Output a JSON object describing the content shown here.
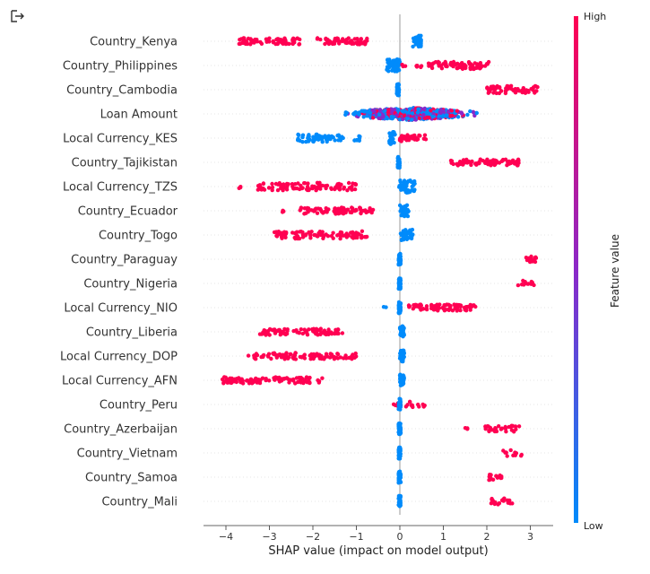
{
  "output_icon": "output-arrow-icon",
  "chart_data": {
    "type": "scatter",
    "subtype": "shap-beeswarm",
    "title": "",
    "xlabel": "SHAP value (impact on model output)",
    "ylabel": "",
    "xlim": [
      -4.5,
      3.5
    ],
    "xticks": [
      -4,
      -3,
      -2,
      -1,
      0,
      1,
      2,
      3
    ],
    "xtick_labels": [
      "−4",
      "−3",
      "−2",
      "−1",
      "0",
      "1",
      "2",
      "3"
    ],
    "grid": false,
    "colorbar": {
      "label": "Feature value",
      "high_label": "High",
      "low_label": "Low",
      "high_color": "#ff0052",
      "mid_color": "#8b28c8",
      "low_color": "#008bfb"
    },
    "features": [
      {
        "name": "Country_Kenya",
        "groups": [
          {
            "x": [
              0.3,
              0.5
            ],
            "value": "low",
            "n": 40,
            "spread": 1.0
          },
          {
            "x": [
              -3.7,
              -2.3
            ],
            "value": "high",
            "n": 70,
            "spread": 0.5
          },
          {
            "x": [
              -1.9,
              -0.75
            ],
            "value": "high",
            "n": 60,
            "spread": 0.5
          }
        ]
      },
      {
        "name": "Country_Philippines",
        "groups": [
          {
            "x": [
              -0.3,
              0.0
            ],
            "value": "low",
            "n": 50,
            "spread": 1.0
          },
          {
            "x": [
              0.05,
              0.15
            ],
            "value": "high",
            "n": 3,
            "spread": 0.2
          },
          {
            "x": [
              0.6,
              2.05
            ],
            "value": "high",
            "n": 80,
            "spread": 0.6
          },
          {
            "x": [
              0.3,
              0.5
            ],
            "value": "high",
            "n": 6,
            "spread": 0.3
          }
        ]
      },
      {
        "name": "Country_Cambodia",
        "groups": [
          {
            "x": [
              -0.07,
              -0.02
            ],
            "value": "low",
            "n": 40,
            "spread": 0.9
          },
          {
            "x": [
              2.0,
              3.2
            ],
            "value": "high",
            "n": 70,
            "spread": 0.6
          }
        ]
      },
      {
        "name": "Loan Amount",
        "groups": [
          {
            "x": [
              -1.5,
              1.95
            ],
            "value": "mixed",
            "n": 600,
            "spread": 1.0
          }
        ]
      },
      {
        "name": "Local Currency_KES",
        "groups": [
          {
            "x": [
              -2.35,
              -1.3
            ],
            "value": "low",
            "n": 60,
            "spread": 0.6
          },
          {
            "x": [
              -1.1,
              -0.9
            ],
            "value": "low",
            "n": 8,
            "spread": 0.4
          },
          {
            "x": [
              -0.25,
              -0.1
            ],
            "value": "low",
            "n": 30,
            "spread": 1.0
          },
          {
            "x": [
              0.0,
              0.6
            ],
            "value": "high",
            "n": 40,
            "spread": 0.5
          }
        ]
      },
      {
        "name": "Country_Tajikistan",
        "groups": [
          {
            "x": [
              -0.05,
              0.0
            ],
            "value": "low",
            "n": 40,
            "spread": 0.9
          },
          {
            "x": [
              1.1,
              1.25
            ],
            "value": "high",
            "n": 4,
            "spread": 0.3
          },
          {
            "x": [
              1.3,
              2.75
            ],
            "value": "high",
            "n": 80,
            "spread": 0.5
          }
        ]
      },
      {
        "name": "Local Currency_TZS",
        "groups": [
          {
            "x": [
              -3.7,
              -3.6
            ],
            "value": "high",
            "n": 3,
            "spread": 0.3
          },
          {
            "x": [
              -3.3,
              -1.0
            ],
            "value": "high",
            "n": 100,
            "spread": 0.6
          },
          {
            "x": [
              -0.02,
              0.35
            ],
            "value": "low",
            "n": 40,
            "spread": 1.0
          }
        ]
      },
      {
        "name": "Country_Ecuador",
        "groups": [
          {
            "x": [
              -2.75,
              -2.65
            ],
            "value": "high",
            "n": 3,
            "spread": 0.3
          },
          {
            "x": [
              -2.3,
              -0.55
            ],
            "value": "high",
            "n": 80,
            "spread": 0.5
          },
          {
            "x": [
              0.0,
              0.2
            ],
            "value": "low",
            "n": 40,
            "spread": 0.9
          }
        ]
      },
      {
        "name": "Country_Togo",
        "groups": [
          {
            "x": [
              -2.9,
              -0.75
            ],
            "value": "high",
            "n": 90,
            "spread": 0.6
          },
          {
            "x": [
              0.0,
              0.3
            ],
            "value": "low",
            "n": 40,
            "spread": 0.9
          }
        ]
      },
      {
        "name": "Country_Paraguay",
        "groups": [
          {
            "x": [
              -0.03,
              0.02
            ],
            "value": "low",
            "n": 40,
            "spread": 0.9
          },
          {
            "x": [
              2.8,
              3.15
            ],
            "value": "high",
            "n": 15,
            "spread": 0.5
          }
        ]
      },
      {
        "name": "Country_Nigeria",
        "groups": [
          {
            "x": [
              -0.03,
              0.02
            ],
            "value": "low",
            "n": 40,
            "spread": 0.9
          },
          {
            "x": [
              2.65,
              3.1
            ],
            "value": "high",
            "n": 12,
            "spread": 0.5
          }
        ]
      },
      {
        "name": "Local Currency_NIO",
        "groups": [
          {
            "x": [
              -0.38,
              -0.32
            ],
            "value": "low",
            "n": 2,
            "spread": 0.2
          },
          {
            "x": [
              -0.03,
              0.02
            ],
            "value": "low",
            "n": 40,
            "spread": 0.9
          },
          {
            "x": [
              0.2,
              1.8
            ],
            "value": "high",
            "n": 80,
            "spread": 0.5
          }
        ]
      },
      {
        "name": "Country_Liberia",
        "groups": [
          {
            "x": [
              -3.25,
              -1.3
            ],
            "value": "high",
            "n": 90,
            "spread": 0.5
          },
          {
            "x": [
              0.0,
              0.1
            ],
            "value": "low",
            "n": 40,
            "spread": 0.9
          }
        ]
      },
      {
        "name": "Local Currency_DOP",
        "groups": [
          {
            "x": [
              -3.5,
              -1.0
            ],
            "value": "high",
            "n": 100,
            "spread": 0.5
          },
          {
            "x": [
              0.0,
              0.1
            ],
            "value": "low",
            "n": 40,
            "spread": 0.9
          }
        ]
      },
      {
        "name": "Local Currency_AFN",
        "groups": [
          {
            "x": [
              -4.1,
              -1.75
            ],
            "value": "high",
            "n": 100,
            "spread": 0.5
          },
          {
            "x": [
              0.0,
              0.1
            ],
            "value": "low",
            "n": 40,
            "spread": 0.9
          }
        ]
      },
      {
        "name": "Country_Peru",
        "groups": [
          {
            "x": [
              -0.15,
              0.6
            ],
            "value": "high",
            "n": 20,
            "spread": 0.5
          },
          {
            "x": [
              -0.03,
              0.02
            ],
            "value": "low",
            "n": 40,
            "spread": 0.9
          }
        ]
      },
      {
        "name": "Country_Azerbaijan",
        "groups": [
          {
            "x": [
              -0.03,
              0.02
            ],
            "value": "low",
            "n": 40,
            "spread": 0.9
          },
          {
            "x": [
              1.5,
              1.6
            ],
            "value": "high",
            "n": 3,
            "spread": 0.3
          },
          {
            "x": [
              1.95,
              2.75
            ],
            "value": "high",
            "n": 30,
            "spread": 0.5
          }
        ]
      },
      {
        "name": "Country_Vietnam",
        "groups": [
          {
            "x": [
              -0.03,
              0.02
            ],
            "value": "low",
            "n": 40,
            "spread": 0.9
          },
          {
            "x": [
              2.35,
              2.8
            ],
            "value": "high",
            "n": 12,
            "spread": 0.5
          }
        ]
      },
      {
        "name": "Country_Samoa",
        "groups": [
          {
            "x": [
              -0.03,
              0.02
            ],
            "value": "low",
            "n": 40,
            "spread": 0.9
          },
          {
            "x": [
              2.05,
              2.35
            ],
            "value": "high",
            "n": 15,
            "spread": 0.5
          }
        ]
      },
      {
        "name": "Country_Mali",
        "groups": [
          {
            "x": [
              -0.03,
              0.02
            ],
            "value": "low",
            "n": 40,
            "spread": 0.9
          },
          {
            "x": [
              2.1,
              2.6
            ],
            "value": "high",
            "n": 20,
            "spread": 0.5
          }
        ]
      }
    ]
  }
}
